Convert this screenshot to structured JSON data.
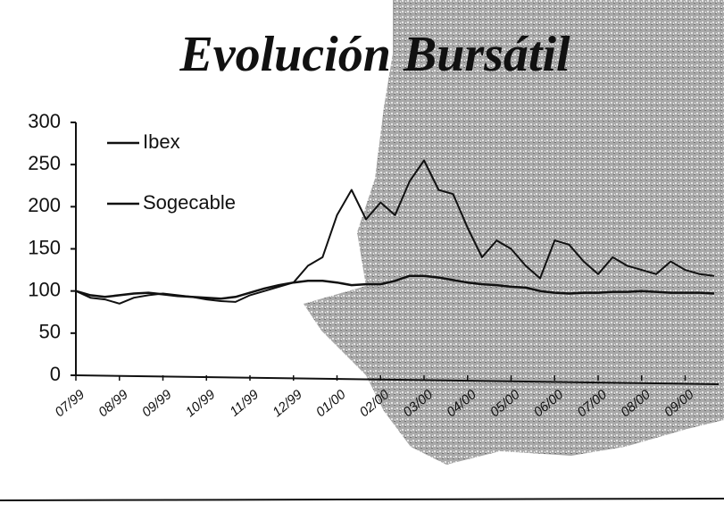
{
  "chart_data": {
    "type": "line",
    "title": "Evolución Bursátil",
    "categories": [
      "07/99",
      null,
      null,
      "08/99",
      null,
      null,
      "09/99",
      null,
      null,
      "10/99",
      null,
      null,
      "11/99",
      null,
      null,
      "12/99",
      null,
      null,
      "01/00",
      null,
      null,
      "02/00",
      null,
      null,
      "03/00",
      null,
      null,
      "04/00",
      null,
      null,
      "05/00",
      null,
      null,
      "06/00",
      null,
      null,
      "07/00",
      null,
      null,
      "08/00",
      null,
      null,
      "09/00",
      null,
      null
    ],
    "series": [
      {
        "name": "Ibex",
        "color": "#111111",
        "values": [
          100,
          95,
          93,
          95,
          97,
          98,
          96,
          94,
          93,
          92,
          91,
          93,
          98,
          103,
          107,
          110,
          112,
          112,
          110,
          107,
          108,
          108,
          112,
          118,
          118,
          116,
          113,
          110,
          108,
          107,
          105,
          104,
          100,
          98,
          97,
          98,
          98,
          99,
          99,
          100,
          99,
          98,
          98,
          98,
          97
        ]
      },
      {
        "name": "Sogecable",
        "color": "#111111",
        "values": [
          100,
          92,
          90,
          85,
          92,
          95,
          97,
          95,
          93,
          90,
          88,
          87,
          95,
          100,
          105,
          110,
          130,
          140,
          190,
          220,
          185,
          205,
          190,
          230,
          255,
          220,
          215,
          175,
          140,
          160,
          150,
          130,
          115,
          160,
          155,
          135,
          120,
          140,
          130,
          125,
          120,
          135,
          125,
          120,
          118
        ]
      }
    ],
    "ylim": [
      0,
      300
    ],
    "yticks": [
      0,
      50,
      100,
      150,
      200,
      250,
      300
    ],
    "legend": "upper left",
    "grid": false
  }
}
